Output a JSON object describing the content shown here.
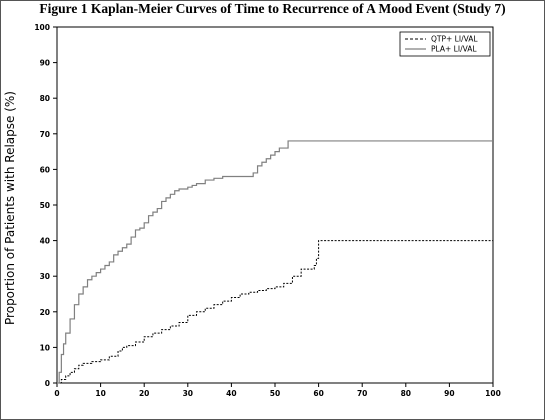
{
  "chart_data": {
    "type": "line",
    "title": "Figure 1  Kaplan-Meier Curves of Time to Recurrence of A Mood Event (Study 7)",
    "xlabel": "",
    "ylabel": "Proportion of Patients with Relapse (%)",
    "xlim": [
      0,
      100
    ],
    "ylim": [
      0,
      100
    ],
    "xticks": [
      "0",
      "10",
      "20",
      "30",
      "40",
      "50",
      "60",
      "70",
      "80",
      "90",
      "100"
    ],
    "yticks": [
      "0",
      "10",
      "20",
      "30",
      "40",
      "50",
      "60",
      "70",
      "80",
      "90",
      "100"
    ],
    "legend_position": "top-right",
    "series": [
      {
        "name": "QTP+ LI/VAL",
        "style": "dashed",
        "color": "#000000",
        "x": [
          0,
          1,
          2,
          3,
          4,
          5,
          6,
          8,
          10,
          12,
          14,
          15,
          16,
          18,
          20,
          22,
          24,
          26,
          28,
          30,
          32,
          34,
          36,
          38,
          40,
          42,
          44,
          46,
          48,
          50,
          52,
          54,
          56,
          58,
          59,
          59.5,
          60,
          100
        ],
        "y": [
          0,
          1,
          2,
          3,
          4,
          5,
          5.5,
          6,
          6.5,
          7.5,
          9,
          10,
          10.5,
          11.5,
          13,
          14,
          15,
          16,
          17,
          19,
          20,
          21,
          22,
          23,
          24,
          25,
          25.5,
          26,
          26.5,
          27,
          28,
          30,
          32,
          32,
          33,
          35,
          40,
          40
        ]
      },
      {
        "name": "PLA+ LI/VAL",
        "style": "solid",
        "color": "#808080",
        "x": [
          0,
          0.5,
          1,
          1.5,
          2,
          3,
          4,
          5,
          6,
          7,
          8,
          9,
          10,
          11,
          12,
          13,
          14,
          15,
          16,
          17,
          18,
          19,
          20,
          21,
          22,
          23,
          24,
          25,
          26,
          27,
          28,
          29,
          30,
          31,
          32,
          34,
          36,
          38,
          40,
          42,
          44,
          45,
          46,
          47,
          48,
          49,
          50,
          51,
          52,
          53,
          100
        ],
        "y": [
          0,
          3,
          8,
          11,
          14,
          18,
          22,
          25,
          27,
          29,
          30,
          31,
          32,
          33,
          34,
          36,
          37,
          38,
          39,
          41,
          43,
          43.5,
          45,
          47,
          48,
          49,
          51,
          52,
          53,
          54,
          54.5,
          54.5,
          55,
          55.5,
          56,
          57,
          57.5,
          58,
          58,
          58,
          58,
          59,
          61,
          62,
          63,
          64,
          65,
          66,
          66,
          68,
          68
        ]
      }
    ]
  }
}
